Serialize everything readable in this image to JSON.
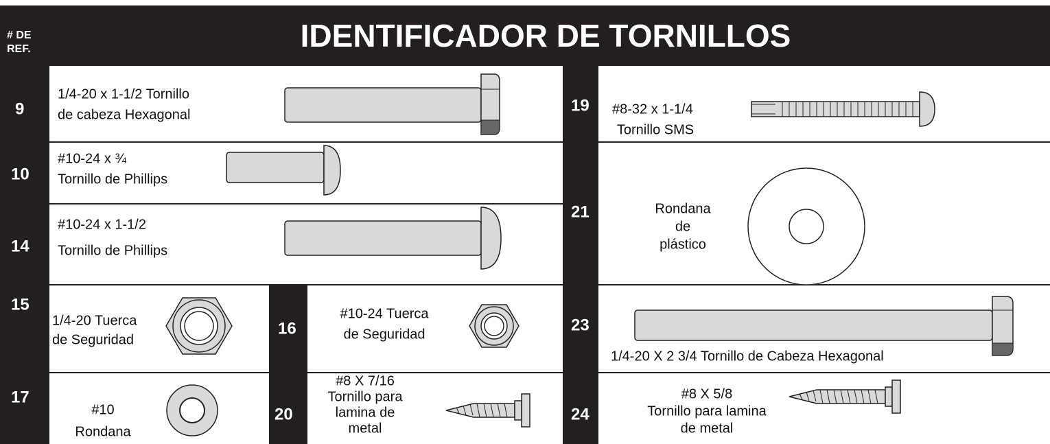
{
  "header": {
    "ref_label": [
      "# DE",
      "REF."
    ],
    "title": "IDENTIFICADOR DE TORNILLOS"
  },
  "items": [
    {
      "ref": "9",
      "lines": [
        "1/4-20 x 1-1/2 Tornillo",
        "de cabeza Hexagonal"
      ]
    },
    {
      "ref": "10",
      "lines": [
        "#10-24  x  ¾",
        "Tornillo de Phillips"
      ]
    },
    {
      "ref": "14",
      "lines": [
        "#10-24  x  1-1/2",
        "Tornillo de Phillips"
      ]
    },
    {
      "ref": "15",
      "lines": [
        "1/4-20 Tuerca",
        "de Seguridad"
      ]
    },
    {
      "ref": "16",
      "lines": [
        "#10-24 Tuerca",
        "de Seguridad"
      ]
    },
    {
      "ref": "17",
      "lines": [
        "#10",
        "Rondana"
      ]
    },
    {
      "ref": "20",
      "lines": [
        "#8  X  7/16",
        "Tornillo para",
        "lamina de",
        "metal"
      ]
    },
    {
      "ref": "19",
      "lines": [
        "#8-32  x  1-1/4",
        "Tornillo SMS"
      ]
    },
    {
      "ref": "21",
      "lines": [
        "Rondana",
        "de",
        "plástico"
      ]
    },
    {
      "ref": "23",
      "lines": [
        "1/4-20 X 2 3/4 Tornillo de Cabeza Hexagonal"
      ]
    },
    {
      "ref": "24",
      "lines": [
        "#8  X  5/8",
        "Tornillo para lamina",
        "de metal"
      ]
    }
  ]
}
